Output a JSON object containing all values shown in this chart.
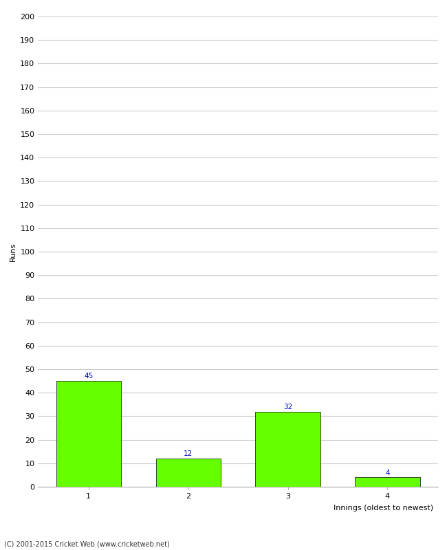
{
  "categories": [
    "1",
    "2",
    "3",
    "4"
  ],
  "values": [
    45,
    12,
    32,
    4
  ],
  "bar_color": "#66ff00",
  "bar_edge_color": "#000000",
  "ylabel": "Runs",
  "xlabel": "Innings (oldest to newest)",
  "ylim": [
    0,
    200
  ],
  "yticks": [
    0,
    10,
    20,
    30,
    40,
    50,
    60,
    70,
    80,
    90,
    100,
    110,
    120,
    130,
    140,
    150,
    160,
    170,
    180,
    190,
    200
  ],
  "label_color": "#0000cc",
  "label_fontsize": 7.5,
  "footer": "(C) 2001-2015 Cricket Web (www.cricketweb.net)",
  "background_color": "#ffffff",
  "grid_color": "#cccccc",
  "tick_label_fontsize": 8,
  "axis_label_fontsize": 8,
  "bar_width": 0.65
}
